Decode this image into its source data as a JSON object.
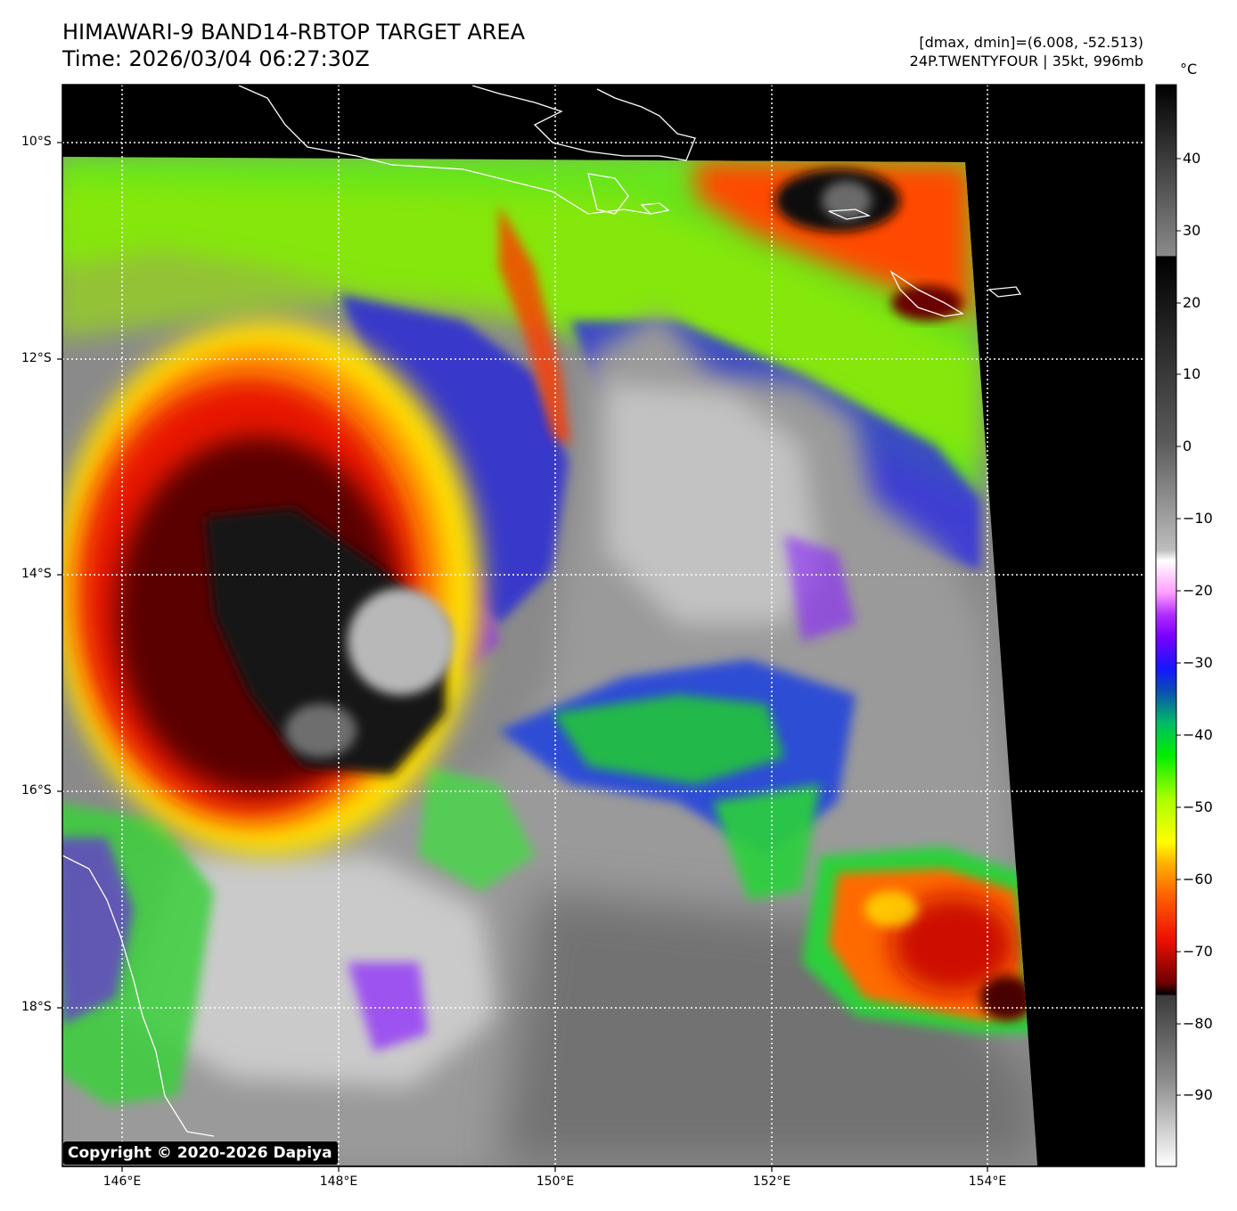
{
  "header": {
    "title_line1": "HIMAWARI-9 BAND14-RBTOP TARGET AREA",
    "title_line2": "Time: 2026/03/04 06:27:30Z",
    "meta_line1": "[dmax, dmin]=(6.008, -52.513)",
    "meta_line2": "24P.TWENTYFOUR | 35kt, 996mb"
  },
  "axes": {
    "lat_labels": [
      "10°S",
      "12°S",
      "14°S",
      "16°S",
      "18°S"
    ],
    "lon_labels": [
      "146°E",
      "148°E",
      "150°E",
      "152°E",
      "154°E"
    ]
  },
  "colorbar": {
    "unit": "°C",
    "ticks": [
      "40",
      "30",
      "20",
      "10",
      "0",
      "−10",
      "−20",
      "−30",
      "−40",
      "−50",
      "−60",
      "−70",
      "−80",
      "−90"
    ]
  },
  "copyright": "Copyright © 2020-2026 Dapiya"
}
